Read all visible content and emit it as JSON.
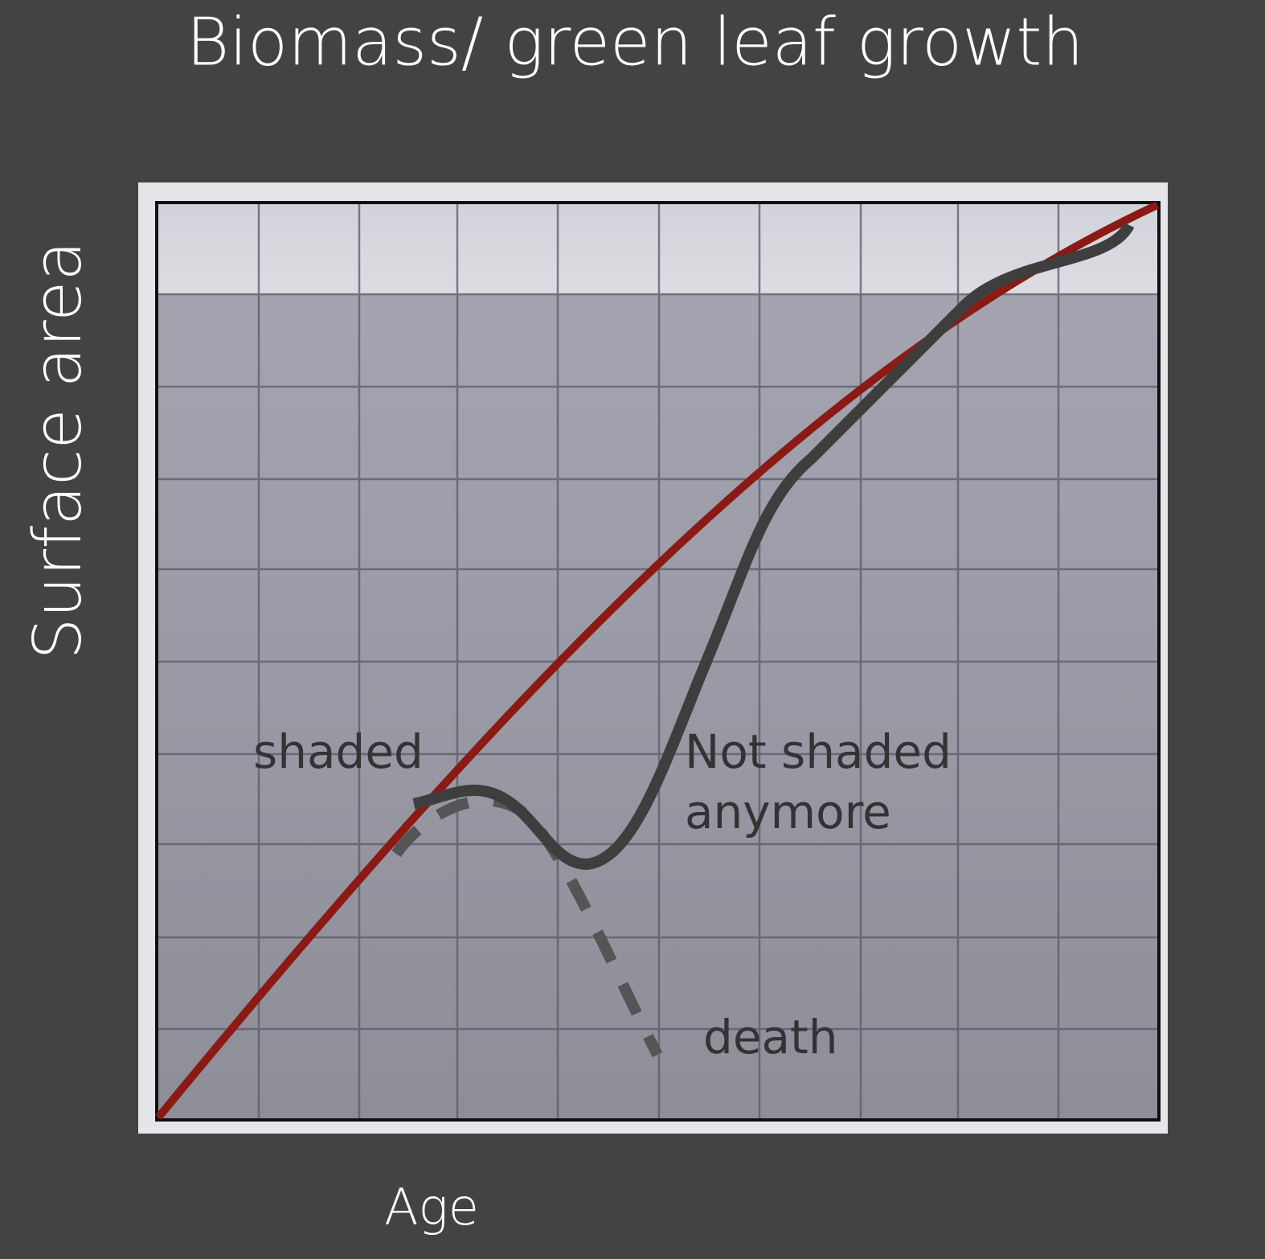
{
  "title": "Biomass/ green leaf growth",
  "y_axis_label": "Surface area",
  "x_axis_label": "Age",
  "annotations": {
    "shaded": "shaded",
    "not_shaded_line1": "Not shaded",
    "not_shaded_line2": "anymore",
    "death": "death"
  }
}
